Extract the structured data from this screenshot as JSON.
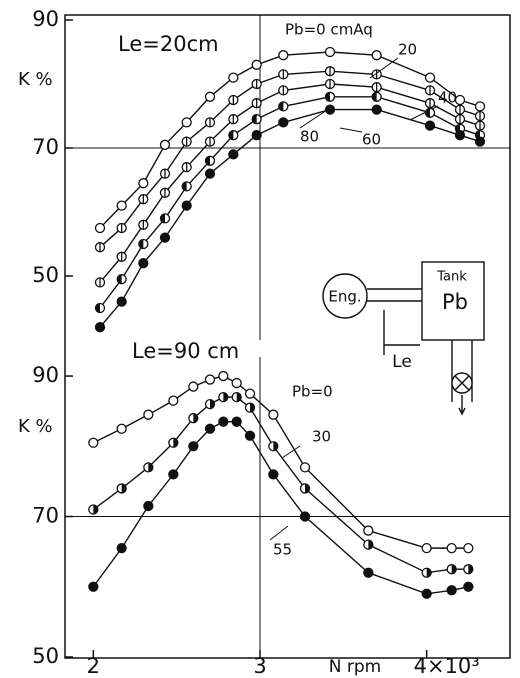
{
  "chart_data": [
    {
      "type": "line",
      "annotation": "Le=20cm",
      "ylabel": "K %",
      "x": [
        2.04,
        2.17,
        2.3,
        2.43,
        2.56,
        2.7,
        2.84,
        2.98,
        3.14,
        3.42,
        3.7,
        4.02,
        4.2,
        4.32
      ],
      "xlim": [
        1.83,
        4.5
      ],
      "ylim": [
        40,
        90
      ],
      "yticks": [
        50,
        70,
        90
      ],
      "xgrid": [
        3
      ],
      "ygrid": [
        70
      ],
      "series": [
        {
          "name": "Pb=0 cmAq",
          "marker": "open",
          "values": [
            57.5,
            61,
            64.5,
            70.5,
            74,
            78,
            81,
            83,
            84.5,
            85,
            84.5,
            81,
            77.5,
            76.5
          ]
        },
        {
          "name": "20",
          "marker": "vbar",
          "values": [
            54.5,
            57.5,
            62,
            66,
            71,
            74,
            77.5,
            80,
            81.5,
            82,
            81.5,
            79,
            76,
            75
          ]
        },
        {
          "name": "40",
          "marker": "vbar",
          "values": [
            49,
            53,
            58,
            63,
            67,
            71,
            74.5,
            77,
            79,
            80,
            79.5,
            77,
            74.5,
            73.5
          ]
        },
        {
          "name": "60",
          "marker": "half-left",
          "values": [
            45,
            49.5,
            55,
            59,
            64,
            68,
            72,
            74.5,
            76.5,
            78,
            78,
            75.5,
            73,
            72
          ]
        },
        {
          "name": "80",
          "marker": "filled",
          "values": [
            42,
            46,
            52,
            56,
            61,
            66,
            69,
            72,
            74,
            76,
            76,
            73.5,
            72,
            71
          ]
        }
      ]
    },
    {
      "type": "line",
      "annotation": "Le=90 cm",
      "ylabel": "K %",
      "xlabel": "N rpm",
      "x": [
        2.0,
        2.17,
        2.33,
        2.48,
        2.6,
        2.7,
        2.78,
        2.86,
        2.94,
        3.08,
        3.27,
        3.65,
        4.0,
        4.15,
        4.25
      ],
      "xlim": [
        1.83,
        4.5
      ],
      "xticks": [
        2,
        3,
        {
          "value": 4,
          "label": "4×10³"
        }
      ],
      "ylim": [
        50,
        92
      ],
      "yticks": [
        50,
        70,
        90
      ],
      "xgrid": [
        3
      ],
      "ygrid": [
        70
      ],
      "series": [
        {
          "name": "Pb=0",
          "marker": "open",
          "values": [
            80.5,
            82.5,
            84.5,
            86.5,
            88.5,
            89.5,
            90,
            89,
            87.5,
            84.5,
            77,
            68,
            65.5,
            65.5,
            65.5
          ]
        },
        {
          "name": "30",
          "marker": "half-right",
          "values": [
            71,
            74,
            77,
            80.5,
            84,
            86,
            87,
            87,
            85.5,
            80,
            74,
            66,
            62,
            62.5,
            62.5
          ]
        },
        {
          "name": "55",
          "marker": "filled",
          "values": [
            60,
            65.5,
            71.5,
            76,
            80,
            82.5,
            83.5,
            83.5,
            81.5,
            76,
            70,
            62,
            59,
            59.5,
            60
          ]
        }
      ]
    }
  ],
  "diagram": {
    "engine": "Eng.",
    "tank": "Tank",
    "pressure": "Pb",
    "length": "Le"
  }
}
